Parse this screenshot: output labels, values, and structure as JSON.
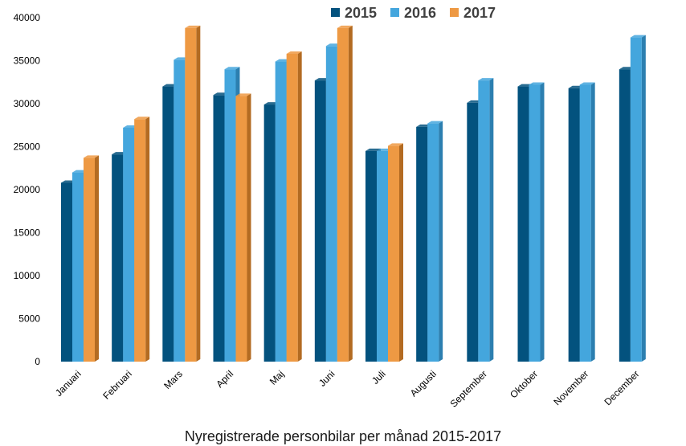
{
  "chart_data": {
    "type": "bar",
    "title": "",
    "xlabel": "Nyregistrerade personbilar per månad 2015-2017",
    "ylabel": "",
    "ylim": [
      0,
      40000
    ],
    "yticks": [
      0,
      5000,
      10000,
      15000,
      20000,
      25000,
      30000,
      35000,
      40000
    ],
    "categories": [
      "Januari",
      "Februari",
      "Mars",
      "April",
      "Maj",
      "Juni",
      "Juli",
      "Augusti",
      "September",
      "Oktober",
      "November",
      "December"
    ],
    "series": [
      {
        "name": "2015",
        "color": "#03527e",
        "side": "#023a5a",
        "values": [
          20800,
          24100,
          32000,
          31000,
          29900,
          32700,
          24500,
          27300,
          30100,
          32000,
          31800,
          34000
        ]
      },
      {
        "name": "2016",
        "color": "#44a6dd",
        "side": "#2c7fb0",
        "values": [
          22000,
          27200,
          35100,
          34000,
          34900,
          36700,
          24500,
          27700,
          32700,
          32200,
          32200,
          37700
        ]
      },
      {
        "name": "2017",
        "color": "#ee9943",
        "side": "#b36b22",
        "values": [
          23700,
          28200,
          38800,
          30900,
          35800,
          38800,
          25100,
          null,
          null,
          null,
          null,
          null
        ]
      }
    ],
    "legend_position": "top-center",
    "grid": false
  }
}
